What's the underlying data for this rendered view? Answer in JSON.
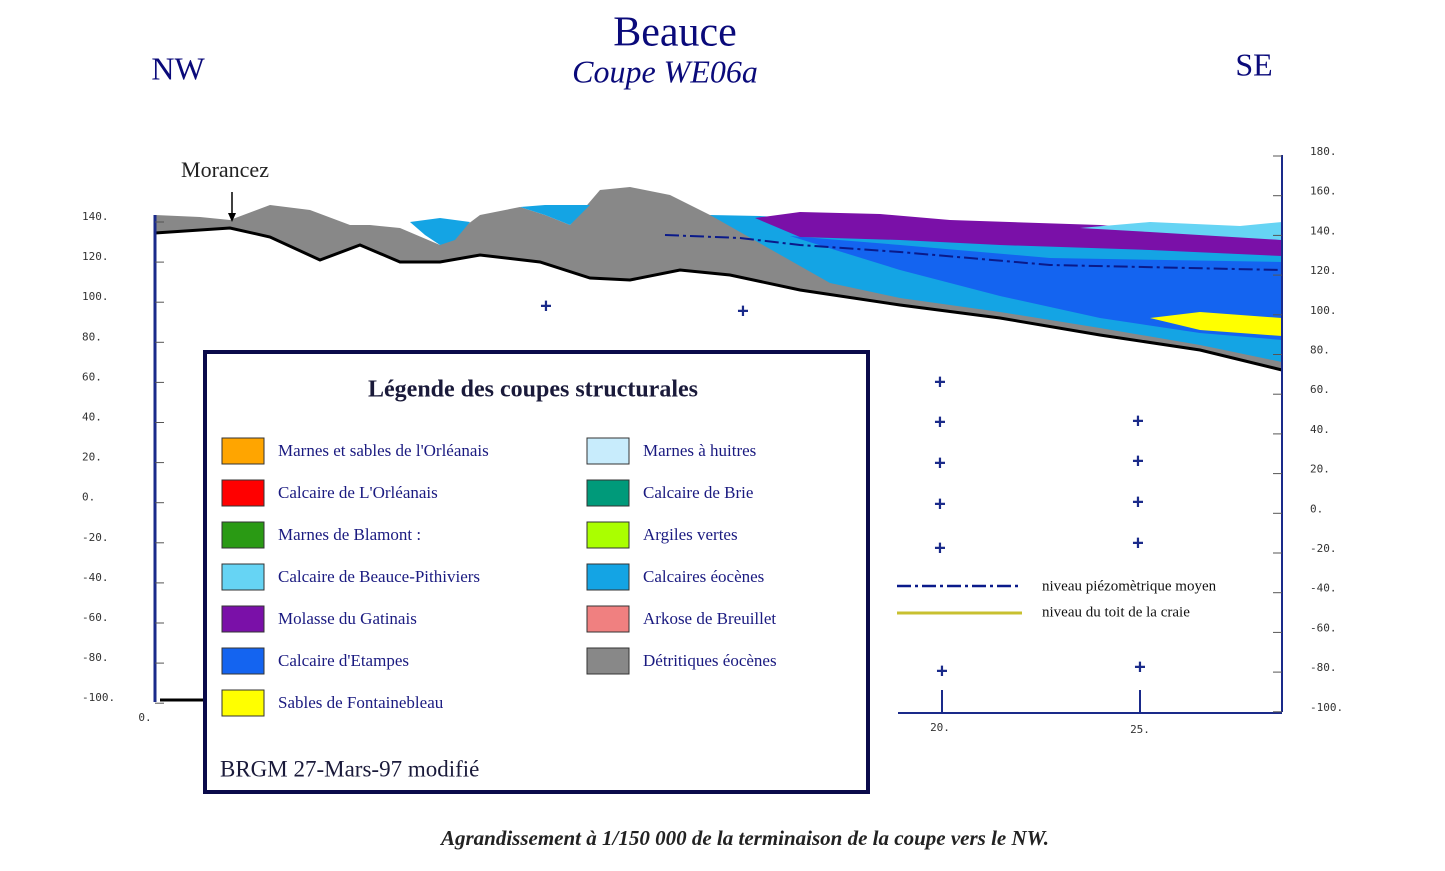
{
  "header": {
    "title": "Beauce",
    "subtitle": "Coupe WE06a",
    "left_direction": "NW",
    "right_direction": "SE"
  },
  "place_label": "Morancez",
  "left_axis": {
    "ticks": [
      "140.",
      "120.",
      "100.",
      "80.",
      "60.",
      "40.",
      "20.",
      "0.",
      "-20.",
      "-40.",
      "-60.",
      "-80.",
      "-100."
    ]
  },
  "right_axis": {
    "ticks": [
      "180.",
      "160.",
      "140.",
      "120.",
      "100.",
      "80.",
      "60.",
      "40.",
      "20.",
      "0.",
      "-20.",
      "-40.",
      "-60.",
      "-80.",
      "-100."
    ]
  },
  "bottom_axis": {
    "ticks": [
      "0.",
      "20.",
      "25."
    ]
  },
  "legend": {
    "title": "Légende des coupes structurales",
    "items": [
      {
        "label": "Marnes et sables de l'Orléanais",
        "color": "#ffa500"
      },
      {
        "label": "Calcaire de L'Orléanais",
        "color": "#ff0000"
      },
      {
        "label": "Marnes de Blamont  :",
        "color": "#2a9a14"
      },
      {
        "label": "Calcaire de Beauce-Pithiviers",
        "color": "#66d4f4"
      },
      {
        "label": "Molasse du Gatinais",
        "color": "#7a10a8"
      },
      {
        "label": "Calcaire d'Etampes",
        "color": "#1464f0"
      },
      {
        "label": "Sables de Fontainebleau",
        "color": "#ffff00"
      },
      {
        "label": "Marnes à huitres",
        "color": "#c8ecfc"
      },
      {
        "label": "Calcaire de Brie",
        "color": "#009a7a"
      },
      {
        "label": "Argiles vertes",
        "color": "#aaff00"
      },
      {
        "label": "Calcaires éocènes",
        "color": "#14a4e4"
      },
      {
        "label": "Arkose de Breuillet",
        "color": "#f08080"
      },
      {
        "label": "Détritiques éocènes",
        "color": "#888888"
      }
    ],
    "note": "BRGM 27-Mars-97 modifié"
  },
  "line_legend": [
    {
      "label": "niveau piézomètrique moyen",
      "color": "#0a1a8a"
    },
    {
      "label": "niveau du toit de la craie",
      "color": "#c8c030"
    }
  ],
  "caption": "Agrandissement à 1/150 000 de la terminaison de la coupe vers le NW."
}
